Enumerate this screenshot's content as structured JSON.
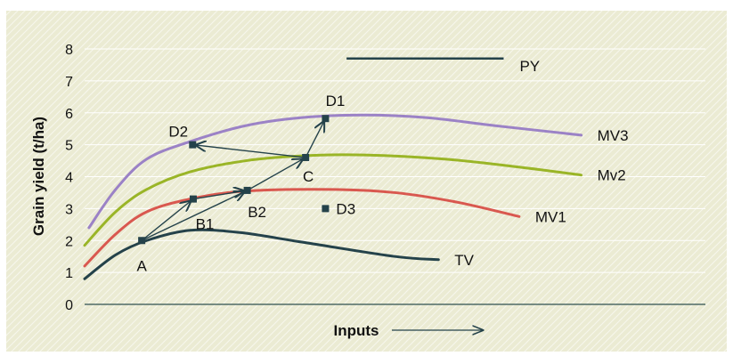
{
  "chart_data": {
    "type": "line",
    "title": "",
    "xlabel": "Inputs",
    "ylabel": "Grain yield (t/ha)",
    "ylim": [
      0,
      8
    ],
    "yticks": [
      "0",
      "1",
      "2",
      "3",
      "4",
      "5",
      "6",
      "7",
      "8"
    ],
    "xlim": [
      0,
      100
    ],
    "grid": "horizontal",
    "background_color": "#ebebd3",
    "hatch_color": "#f6f6ea",
    "axis_color": "#2f4f4f",
    "series": [
      {
        "name": "TV",
        "color": "#24424a",
        "points": [
          [
            0,
            0.8
          ],
          [
            5,
            1.55
          ],
          [
            10,
            2.0
          ],
          [
            17,
            2.32
          ],
          [
            25,
            2.25
          ],
          [
            35,
            1.95
          ],
          [
            50,
            1.5
          ],
          [
            57,
            1.4
          ]
        ]
      },
      {
        "name": "MV1",
        "color": "#d9584f",
        "points": [
          [
            0,
            1.2
          ],
          [
            5,
            2.2
          ],
          [
            10,
            2.9
          ],
          [
            17,
            3.3
          ],
          [
            26,
            3.55
          ],
          [
            40,
            3.6
          ],
          [
            50,
            3.5
          ],
          [
            60,
            3.2
          ],
          [
            70,
            2.75
          ]
        ]
      },
      {
        "name": "Mv2",
        "color": "#9ab527",
        "points": [
          [
            0,
            1.85
          ],
          [
            5,
            2.9
          ],
          [
            10,
            3.6
          ],
          [
            17,
            4.15
          ],
          [
            26,
            4.5
          ],
          [
            35,
            4.65
          ],
          [
            45,
            4.68
          ],
          [
            58,
            4.55
          ],
          [
            70,
            4.3
          ],
          [
            80,
            4.05
          ]
        ]
      },
      {
        "name": "MV3",
        "color": "#9b82c6",
        "points": [
          [
            0.7,
            2.4
          ],
          [
            5,
            3.6
          ],
          [
            10,
            4.55
          ],
          [
            17,
            5.1
          ],
          [
            26,
            5.6
          ],
          [
            35,
            5.85
          ],
          [
            45,
            5.93
          ],
          [
            55,
            5.85
          ],
          [
            66,
            5.6
          ],
          [
            80,
            5.3
          ]
        ]
      }
    ],
    "reference_line": {
      "name": "PY",
      "y": 7.7,
      "x": [
        42.2,
        67.5
      ],
      "color": "#24424a"
    },
    "markers": [
      {
        "label": "A",
        "x": 9.2,
        "y": 2.0
      },
      {
        "label": "B1",
        "x": 17.5,
        "y": 3.3
      },
      {
        "label": "B2",
        "x": 26.2,
        "y": 3.57
      },
      {
        "label": "C",
        "x": 35.6,
        "y": 4.6
      },
      {
        "label": "D1",
        "x": 38.8,
        "y": 5.82
      },
      {
        "label": "D2",
        "x": 17.4,
        "y": 5.0
      },
      {
        "label": "D3",
        "x": 38.8,
        "y": 3.0
      }
    ],
    "arrows": [
      [
        "A",
        "B1"
      ],
      [
        "A",
        "B2"
      ],
      [
        "B1",
        "B2"
      ],
      [
        "B2",
        "C"
      ],
      [
        "C",
        "D1"
      ],
      [
        "C",
        "D2"
      ]
    ]
  }
}
